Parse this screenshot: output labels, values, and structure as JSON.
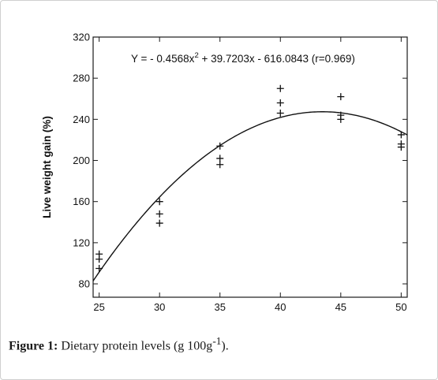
{
  "chart_data": {
    "type": "scatter",
    "equation": {
      "prefix": "Y = - 0.4568x",
      "exponent": "2",
      "suffix": " + 39.7203x - 616.0843 (r=0.969)"
    },
    "fit": {
      "a": -0.4568,
      "b": 39.7203,
      "c": -616.0843
    },
    "ylabel": "Live weight gain (%)",
    "xlim": [
      24.5,
      50.5
    ],
    "ylim": [
      67,
      320
    ],
    "x_ticks": [
      25,
      30,
      35,
      40,
      45,
      50
    ],
    "y_ticks": [
      80,
      120,
      160,
      200,
      240,
      280,
      320
    ],
    "points": [
      {
        "x": 25,
        "y": 109
      },
      {
        "x": 25,
        "y": 104
      },
      {
        "x": 25,
        "y": 95
      },
      {
        "x": 30,
        "y": 160
      },
      {
        "x": 30,
        "y": 148
      },
      {
        "x": 30,
        "y": 139
      },
      {
        "x": 35,
        "y": 214
      },
      {
        "x": 35,
        "y": 202
      },
      {
        "x": 35,
        "y": 196
      },
      {
        "x": 40,
        "y": 270
      },
      {
        "x": 40,
        "y": 256
      },
      {
        "x": 40,
        "y": 246
      },
      {
        "x": 45,
        "y": 262
      },
      {
        "x": 45,
        "y": 244
      },
      {
        "x": 45,
        "y": 240
      },
      {
        "x": 50,
        "y": 225
      },
      {
        "x": 50,
        "y": 216
      },
      {
        "x": 50,
        "y": 213
      }
    ],
    "marker": "+",
    "grid": false
  },
  "caption": {
    "label": "Figure 1:",
    "text": " Dietary protein levels (g 100g",
    "sup": "-1",
    "end": ")."
  }
}
